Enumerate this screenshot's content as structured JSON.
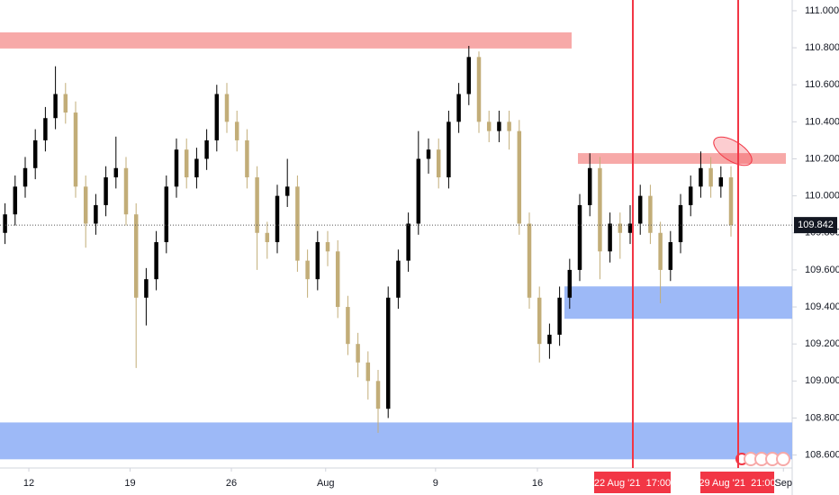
{
  "chart_data": {
    "type": "candlestick",
    "open": [
      109.8,
      109.9,
      110.05,
      110.15,
      110.3,
      110.42,
      110.55,
      110.45,
      110.05,
      109.85,
      109.95,
      110.1,
      110.15,
      109.9,
      109.45,
      109.55,
      109.75,
      110.05,
      110.25,
      110.1,
      110.2,
      110.3,
      110.55,
      110.4,
      110.3,
      110.1,
      109.8,
      109.75,
      110.0,
      110.05,
      109.65,
      109.55,
      109.75,
      109.7,
      109.4,
      109.2,
      109.1,
      109.0,
      108.85,
      109.45,
      109.65,
      109.85,
      110.2,
      110.25,
      110.1,
      110.4,
      110.55,
      110.75,
      110.4,
      110.35,
      110.4,
      110.35,
      109.85,
      109.45,
      109.2,
      109.25,
      109.45,
      109.6,
      109.95,
      110.15,
      109.7,
      109.85,
      109.8,
      109.85,
      110.0,
      109.8,
      109.6,
      109.75,
      109.95,
      110.05,
      110.15,
      110.05,
      110.1
    ],
    "high": [
      109.96,
      110.11,
      110.21,
      110.36,
      110.48,
      110.7,
      110.61,
      110.51,
      110.11,
      110.01,
      110.16,
      110.32,
      110.21,
      109.96,
      109.61,
      109.81,
      110.11,
      110.31,
      110.31,
      110.26,
      110.36,
      110.6,
      110.61,
      110.46,
      110.36,
      110.16,
      109.86,
      110.06,
      110.2,
      110.11,
      109.71,
      109.81,
      109.81,
      109.76,
      109.46,
      109.26,
      109.16,
      109.06,
      109.51,
      109.71,
      109.91,
      110.35,
      110.31,
      110.31,
      110.46,
      110.61,
      110.81,
      110.78,
      110.46,
      110.46,
      110.46,
      110.41,
      109.91,
      109.51,
      109.31,
      109.51,
      109.66,
      110.01,
      110.23,
      110.21,
      109.91,
      109.91,
      109.95,
      110.06,
      110.06,
      109.86,
      109.81,
      110.01,
      110.11,
      110.24,
      110.21,
      110.16,
      110.16
    ],
    "low": [
      109.74,
      109.84,
      109.99,
      110.09,
      110.24,
      110.36,
      110.39,
      109.99,
      109.72,
      109.79,
      109.89,
      110.04,
      109.84,
      109.07,
      109.3,
      109.49,
      109.69,
      109.99,
      110.04,
      110.04,
      110.14,
      110.24,
      110.34,
      110.24,
      110.04,
      109.6,
      109.66,
      109.69,
      109.94,
      109.59,
      109.45,
      109.49,
      109.62,
      109.34,
      109.14,
      109.02,
      108.9,
      108.72,
      108.8,
      109.39,
      109.59,
      109.79,
      110.12,
      110.04,
      110.04,
      110.34,
      110.49,
      110.34,
      110.29,
      110.29,
      110.25,
      109.79,
      109.39,
      109.1,
      109.12,
      109.19,
      109.39,
      109.54,
      109.89,
      109.55,
      109.64,
      109.66,
      109.74,
      109.79,
      109.74,
      109.42,
      109.54,
      109.69,
      109.89,
      109.99,
      109.99,
      109.99,
      109.78
    ],
    "close": [
      109.9,
      110.05,
      110.15,
      110.3,
      110.42,
      110.55,
      110.45,
      110.05,
      109.85,
      109.95,
      110.1,
      110.15,
      109.9,
      109.45,
      109.55,
      109.75,
      110.05,
      110.25,
      110.1,
      110.2,
      110.3,
      110.55,
      110.4,
      110.3,
      110.1,
      109.8,
      109.75,
      110.0,
      110.05,
      109.65,
      109.55,
      109.75,
      109.7,
      109.4,
      109.2,
      109.1,
      109.0,
      108.85,
      109.45,
      109.65,
      109.85,
      110.2,
      110.25,
      110.1,
      110.4,
      110.55,
      110.75,
      110.4,
      110.35,
      110.4,
      110.35,
      109.85,
      109.45,
      109.2,
      109.25,
      109.45,
      109.6,
      109.95,
      110.15,
      109.7,
      109.85,
      109.8,
      109.85,
      110.0,
      109.8,
      109.6,
      109.75,
      109.95,
      110.05,
      110.15,
      110.05,
      110.1,
      109.842
    ],
    "up_color": "#000000",
    "down_color": "#c2ad78",
    "xlim": [
      -0.5,
      78.07
    ],
    "xticks": [
      {
        "value": 2.36,
        "label": "12"
      },
      {
        "value": 12.4,
        "label": "19"
      },
      {
        "value": 22.45,
        "label": "26"
      },
      {
        "value": 31.8,
        "label": "Aug"
      },
      {
        "value": 42.7,
        "label": "9"
      },
      {
        "value": 52.8,
        "label": "16"
      },
      {
        "value": 77.2,
        "label": "Sep"
      }
    ],
    "ylim": [
      108.53,
      111.058
    ],
    "yticks": [
      {
        "value": 111,
        "label": "111.000"
      },
      {
        "value": 110.8,
        "label": "110.800"
      },
      {
        "value": 110.6,
        "label": "110.600"
      },
      {
        "value": 110.4,
        "label": "110.400"
      },
      {
        "value": 110.2,
        "label": "110.200"
      },
      {
        "value": 110,
        "label": "110.000"
      },
      {
        "value": 109.8,
        "label": "109.800"
      },
      {
        "value": 109.6,
        "label": "109.600"
      },
      {
        "value": 109.4,
        "label": "109.400"
      },
      {
        "value": 109.2,
        "label": "109.200"
      },
      {
        "value": 109,
        "label": "109.000"
      },
      {
        "value": 108.8,
        "label": "108.800"
      },
      {
        "value": 108.6,
        "label": "108.600"
      }
    ],
    "last_price": 109.842,
    "zones": [
      {
        "color": "#f7a9a8",
        "low": 110.796,
        "high": 110.883
      },
      {
        "color": "#f7a9a8",
        "low": 110.173,
        "high": 110.231
      },
      {
        "color": "#9db9f7",
        "low": 109.336,
        "high": 109.511
      },
      {
        "color": "#9db9f7",
        "low": 108.577,
        "high": 108.776
      }
    ],
    "vlines": [
      {
        "label": "22 Aug '21  17:00",
        "color": "#f23645"
      },
      {
        "label": "29 Aug '21  21:00",
        "color": "#f23645"
      }
    ]
  }
}
